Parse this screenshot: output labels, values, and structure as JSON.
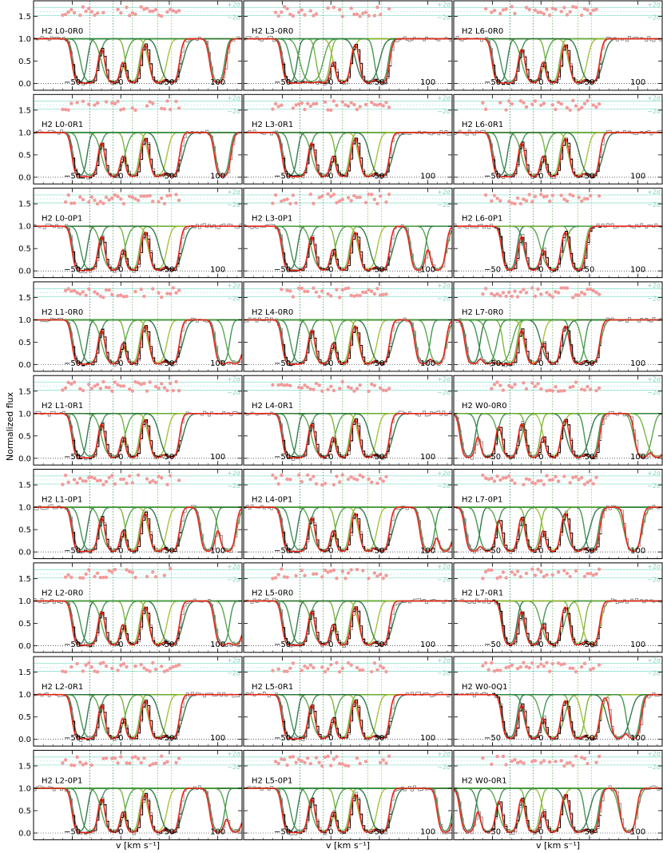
{
  "chart_data": {
    "type": "line",
    "ylabel": "Normalized flux",
    "xlabel": "v [km s⁻¹]",
    "xlim": [
      -90,
      125
    ],
    "ylim": [
      -0.15,
      1.85
    ],
    "x_ticks": [
      -50,
      0,
      50,
      100
    ],
    "y_ticks": [
      0.0,
      0.5,
      1.0,
      1.5
    ],
    "sigma_labels": [
      "+2σ",
      "−2σ"
    ],
    "component_velocities": [
      -32,
      -8,
      12,
      38,
      52
    ],
    "grid_rows": 9,
    "grid_cols": 3,
    "colors": {
      "data": "#000000",
      "data_unused": "#888888",
      "model": "#e8261a",
      "components": [
        "#1f6b3a",
        "#2e8b44",
        "#4a9e3c",
        "#6fae2c",
        "#9bbb2a"
      ],
      "residuals": "#f49a9a",
      "sigma_lines": "#8fe0cf",
      "zero_line": "#000000"
    },
    "panels": [
      {
        "label": "H2 L0-0R0",
        "lines": [
          -42,
          -32,
          -8,
          12,
          38,
          52,
          100
        ]
      },
      {
        "label": "H2 L3-0R0",
        "lines": [
          -42,
          -32,
          -20,
          -8,
          12,
          38,
          52
        ]
      },
      {
        "label": "H2 L6-0R0",
        "lines": [
          -42,
          -32,
          -8,
          12,
          38,
          52
        ]
      },
      {
        "label": "H2 L0-0R1",
        "lines": [
          -42,
          -32,
          -8,
          12,
          38,
          52,
          105
        ]
      },
      {
        "label": "H2 L3-0R1",
        "lines": [
          -42,
          -32,
          -8,
          12,
          38,
          52
        ]
      },
      {
        "label": "H2 L6-0R1",
        "lines": [
          -42,
          -32,
          -8,
          12,
          38,
          52
        ]
      },
      {
        "label": "H2 L0-0P1",
        "lines": [
          -42,
          -32,
          -8,
          12,
          38,
          52
        ]
      },
      {
        "label": "H2 L3-0P1",
        "lines": [
          -42,
          -32,
          -8,
          12,
          38,
          52,
          90,
          110
        ]
      },
      {
        "label": "H2 L6-0P1",
        "lines": [
          -32,
          -8,
          12,
          38
        ]
      },
      {
        "label": "H2 L1-0R0",
        "lines": [
          -42,
          -32,
          -8,
          12,
          38,
          52,
          105,
          118
        ]
      },
      {
        "label": "H2 L4-0R0",
        "lines": [
          -42,
          -32,
          -8,
          12,
          38,
          52,
          95,
          110
        ]
      },
      {
        "label": "H2 L7-0R0",
        "lines": [
          -70,
          -55,
          -42,
          -32,
          -8,
          12,
          38,
          52
        ]
      },
      {
        "label": "H2 L1-0R1",
        "lines": [
          -42,
          -32,
          -8,
          12,
          38,
          52
        ]
      },
      {
        "label": "H2 L4-0R1",
        "lines": [
          -42,
          -32,
          -8,
          12,
          38,
          52
        ]
      },
      {
        "label": "H2 W0-0R0",
        "lines": [
          -75,
          -55,
          -32,
          -8,
          12,
          38,
          52,
          105,
          120
        ]
      },
      {
        "label": "H2 L1-0P1",
        "lines": [
          -42,
          -32,
          -8,
          12,
          38,
          52,
          90,
          110
        ]
      },
      {
        "label": "H2 L4-0P1",
        "lines": [
          -42,
          -32,
          -8,
          12,
          38,
          52,
          100,
          118
        ]
      },
      {
        "label": "H2 L7-0P1",
        "lines": [
          -70,
          -55,
          -32,
          -8,
          12,
          38,
          52,
          95
        ]
      },
      {
        "label": "H2 L2-0R0",
        "lines": [
          -42,
          -32,
          -8,
          12,
          38,
          52,
          105,
          118
        ]
      },
      {
        "label": "H2 L5-0R0",
        "lines": [
          -42,
          -32,
          -8,
          12,
          38,
          52
        ]
      },
      {
        "label": "H2 L7-0R1",
        "lines": [
          -32,
          -8,
          12,
          38,
          52
        ]
      },
      {
        "label": "H2 L2-0R1",
        "lines": [
          -42,
          -32,
          -8,
          12,
          38,
          52
        ]
      },
      {
        "label": "H2 L5-0R1",
        "lines": [
          -42,
          -32,
          -8,
          12,
          38,
          52
        ]
      },
      {
        "label": "H2 W0-0Q1",
        "lines": [
          -32,
          -8,
          12,
          38,
          52,
          80,
          95
        ]
      },
      {
        "label": "H2 L2-0P1",
        "lines": [
          -42,
          -32,
          -8,
          12,
          38,
          52,
          100,
          118
        ]
      },
      {
        "label": "H2 L5-0P1",
        "lines": [
          -42,
          -32,
          -8,
          12,
          38,
          52,
          118
        ]
      },
      {
        "label": "H2 W0-0R1",
        "lines": [
          -75,
          -55,
          -32,
          -8,
          12,
          38,
          52,
          90
        ]
      }
    ]
  }
}
